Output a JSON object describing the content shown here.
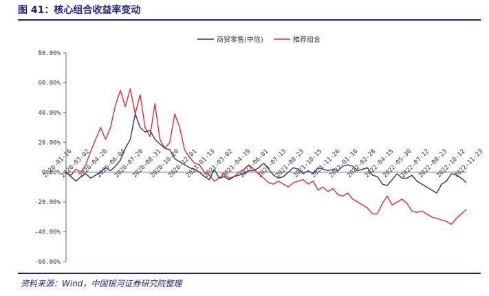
{
  "figure": {
    "title": "图 41：核心组合收益率变动",
    "source": "资料来源：Wind，中国银河证券研究院整理"
  },
  "chart_data": {
    "type": "line",
    "ylim": [
      -60,
      80
    ],
    "y_ticks": [
      80,
      60,
      40,
      20,
      0,
      -20,
      -40,
      -60
    ],
    "y_tick_labels": [
      "80.00%",
      "60.00%",
      "40.00%",
      "20.00%",
      "0.00%",
      "-20.00%",
      "-40.00%",
      "-60.00%"
    ],
    "x_tick_labels": [
      "2020-01-16",
      "2020-03-02",
      "2020-04-20",
      "2020-06-04",
      "2020-07-20",
      "2020-08-31",
      "2020-10-20",
      "2020-12-01",
      "2021-01-13",
      "2021-03-02",
      "2021-04-19",
      "2021-06-01",
      "2021-07-13",
      "2021-08-23",
      "2021-10-15",
      "2021-11-26",
      "2022-01-10",
      "2022-02-28",
      "2022-04-15",
      "2022-05-30",
      "2022-07-12",
      "2022-08-23",
      "2022-10-12",
      "2022-11-23"
    ],
    "legend_position": "top-center",
    "grid": false,
    "series": [
      {
        "name": "商贸零售(中信)",
        "color": "#2e2e7e",
        "values": [
          0,
          -3,
          -6,
          -3,
          -1,
          -4,
          -2,
          0,
          3,
          1,
          4,
          8,
          16,
          22,
          39,
          30,
          27,
          28,
          22,
          19,
          16,
          15,
          9,
          7,
          5,
          3,
          2,
          0,
          -3,
          -5,
          2,
          -4,
          -3,
          -5,
          -3,
          -2,
          -1,
          1,
          1,
          3,
          6,
          2,
          -2,
          -4,
          -3,
          0,
          3,
          2,
          -1,
          1,
          -1,
          3,
          2,
          1,
          2,
          1,
          4,
          5,
          4,
          1,
          2,
          3,
          -2,
          -3,
          -8,
          -9,
          -5,
          -1,
          -4,
          -4,
          -2,
          -6,
          -8,
          -10,
          -12,
          -14,
          -8,
          -6,
          -1,
          -2,
          -4,
          -7
        ]
      },
      {
        "name": "推荐组合",
        "color": "#e8262b",
        "values": [
          0,
          -2,
          2,
          0,
          5,
          14,
          22,
          30,
          22,
          30,
          45,
          55,
          44,
          56,
          39,
          52,
          30,
          24,
          46,
          22,
          16,
          20,
          39,
          30,
          15,
          10,
          6,
          5,
          0,
          -2,
          -6,
          -4,
          -1,
          -4,
          -3,
          0,
          2,
          5,
          2,
          -1,
          -4,
          -7,
          -8,
          -6,
          -8,
          -10,
          -7,
          -6,
          -5,
          -8,
          -6,
          -12,
          -10,
          -13,
          -11,
          -15,
          -16,
          -14,
          -18,
          -20,
          -22,
          -24,
          -28,
          -28,
          -21,
          -16,
          -22,
          -20,
          -18,
          -21,
          -26,
          -27,
          -26,
          -28,
          -30,
          -31,
          -32,
          -33,
          -35,
          -31,
          -28,
          -25
        ]
      }
    ]
  }
}
